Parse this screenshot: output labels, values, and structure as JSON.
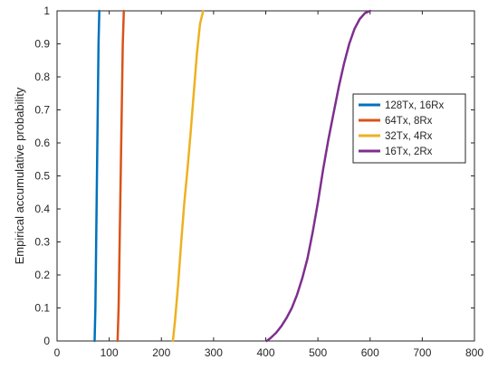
{
  "chart_data": {
    "type": "line",
    "xlabel": "",
    "ylabel": "Empirical accumulative probability",
    "xlim": [
      0,
      800
    ],
    "ylim": [
      0,
      1
    ],
    "xticks": [
      "0",
      "100",
      "200",
      "300",
      "400",
      "500",
      "600",
      "700",
      "800"
    ],
    "yticks": [
      "0",
      "0.1",
      "0.2",
      "0.3",
      "0.4",
      "0.5",
      "0.6",
      "0.7",
      "0.8",
      "0.9",
      "1"
    ],
    "grid": true,
    "legend_position": "right",
    "series": [
      {
        "name": "128Tx, 16Rx",
        "color": "#0072BD",
        "x": [
          72,
          73.5,
          75,
          76.5,
          78,
          79.5,
          81
        ],
        "y": [
          0,
          0.1,
          0.3,
          0.5,
          0.7,
          0.9,
          1
        ]
      },
      {
        "name": "64Tx, 8Rx",
        "color": "#D95319",
        "x": [
          116,
          118,
          120,
          122,
          124,
          126,
          128
        ],
        "y": [
          0,
          0.1,
          0.3,
          0.5,
          0.7,
          0.9,
          1
        ]
      },
      {
        "name": "32Tx, 4Rx",
        "color": "#EDB120",
        "x": [
          222,
          226,
          232,
          238,
          244,
          250,
          256,
          262,
          268,
          274,
          280
        ],
        "y": [
          0,
          0.06,
          0.17,
          0.3,
          0.42,
          0.52,
          0.63,
          0.75,
          0.87,
          0.96,
          1
        ]
      },
      {
        "name": "16Tx, 2Rx",
        "color": "#7E2F8E",
        "x": [
          402,
          410,
          420,
          430,
          440,
          450,
          460,
          470,
          480,
          490,
          500,
          510,
          520,
          530,
          540,
          550,
          560,
          570,
          580,
          590,
          600
        ],
        "y": [
          0,
          0.01,
          0.025,
          0.045,
          0.07,
          0.1,
          0.14,
          0.19,
          0.25,
          0.33,
          0.42,
          0.52,
          0.61,
          0.69,
          0.77,
          0.84,
          0.9,
          0.945,
          0.975,
          0.993,
          1
        ]
      }
    ]
  }
}
